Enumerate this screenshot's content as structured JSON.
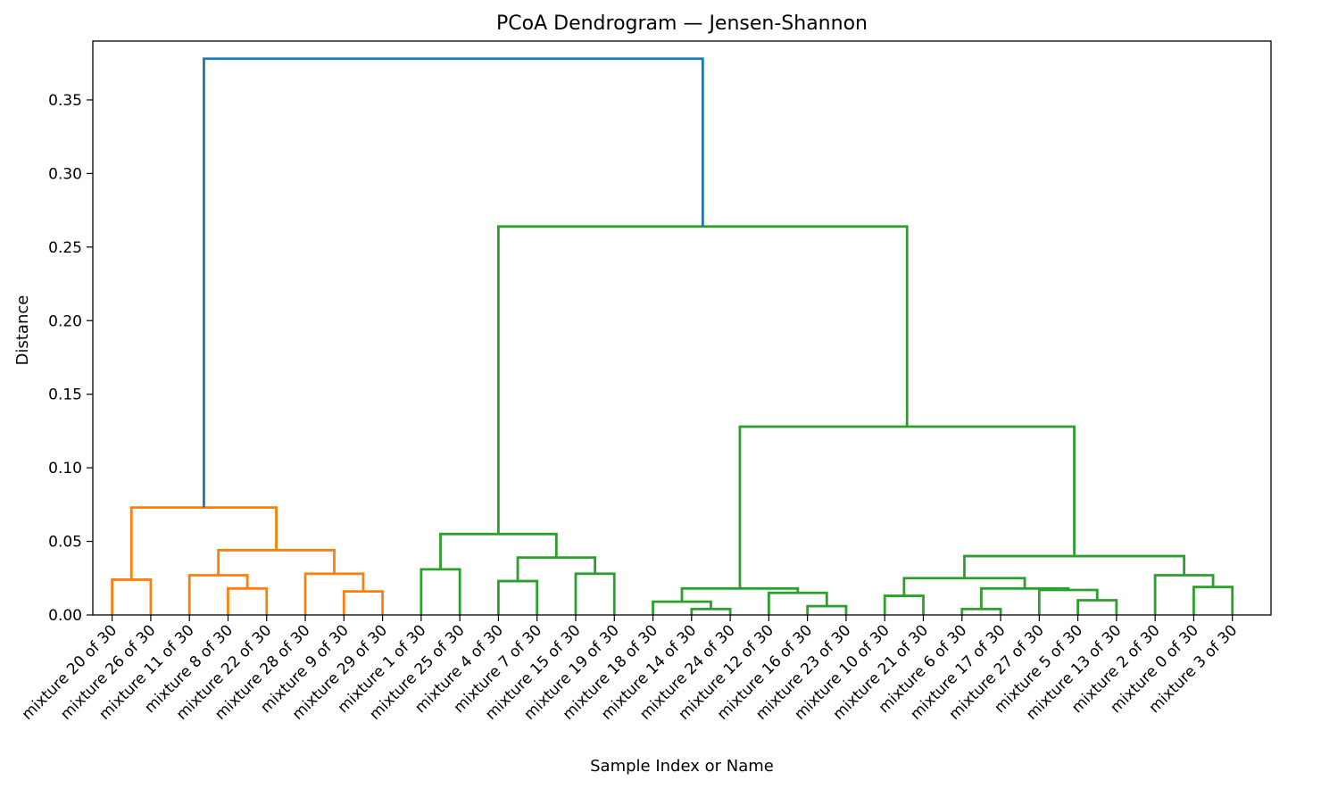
{
  "chart_data": {
    "type": "dendrogram",
    "title": "PCoA Dendrogram — Jensen-Shannon",
    "xlabel": "Sample Index or Name",
    "ylabel": "Distance",
    "ylim": [
      0,
      0.39
    ],
    "yticks": [
      0.0,
      0.05,
      0.1,
      0.15,
      0.2,
      0.25,
      0.3,
      0.35
    ],
    "ytick_labels": [
      "0.00",
      "0.05",
      "0.10",
      "0.15",
      "0.20",
      "0.25",
      "0.30",
      "0.35"
    ],
    "grid": false,
    "leaves": [
      "mixture 20 of 30",
      "mixture 26 of 30",
      "mixture 11 of 30",
      "mixture 8 of 30",
      "mixture 22 of 30",
      "mixture 28 of 30",
      "mixture 9 of 30",
      "mixture 29 of 30",
      "mixture 1 of 30",
      "mixture 25 of 30",
      "mixture 4 of 30",
      "mixture 7 of 30",
      "mixture 15 of 30",
      "mixture 19 of 30",
      "mixture 18 of 30",
      "mixture 14 of 30",
      "mixture 24 of 30",
      "mixture 12 of 30",
      "mixture 16 of 30",
      "mixture 23 of 30",
      "mixture 10 of 30",
      "mixture 21 of 30",
      "mixture 6 of 30",
      "mixture 17 of 30",
      "mixture 27 of 30",
      "mixture 5 of 30",
      "mixture 13 of 30",
      "mixture 2 of 30",
      "mixture 0 of 30",
      "mixture 3 of 30"
    ],
    "colors": {
      "orange": "#ff7f0e",
      "green": "#2ca02c",
      "blue": "#1f77b4"
    },
    "merges": [
      {
        "left": 0,
        "right": 1,
        "height": 0.024,
        "color": "orange"
      },
      {
        "left": 3,
        "right": 4,
        "height": 0.018,
        "color": "orange"
      },
      {
        "left": 2,
        "right": "c1",
        "height": 0.027,
        "color": "orange"
      },
      {
        "left": 6,
        "right": 7,
        "height": 0.016,
        "color": "orange"
      },
      {
        "left": 5,
        "right": "c3",
        "height": 0.028,
        "color": "orange"
      },
      {
        "left": "c2",
        "right": "c4",
        "height": 0.044,
        "color": "orange"
      },
      {
        "left": "c0",
        "right": "c5",
        "height": 0.073,
        "color": "orange"
      },
      {
        "left": 8,
        "right": 9,
        "height": 0.031,
        "color": "green"
      },
      {
        "left": 10,
        "right": 11,
        "height": 0.023,
        "color": "green"
      },
      {
        "left": 12,
        "right": 13,
        "height": 0.028,
        "color": "green"
      },
      {
        "left": "c8",
        "right": "c9",
        "height": 0.039,
        "color": "green"
      },
      {
        "left": "c7",
        "right": "c10",
        "height": 0.055,
        "color": "green"
      },
      {
        "left": 15,
        "right": 16,
        "height": 0.004,
        "color": "green"
      },
      {
        "left": 14,
        "right": "c12",
        "height": 0.009,
        "color": "green"
      },
      {
        "left": 18,
        "right": 19,
        "height": 0.006,
        "color": "green"
      },
      {
        "left": 17,
        "right": "c14",
        "height": 0.015,
        "color": "green"
      },
      {
        "left": "c13",
        "right": "c15",
        "height": 0.018,
        "color": "green"
      },
      {
        "left": 20,
        "right": 21,
        "height": 0.013,
        "color": "green"
      },
      {
        "left": 22,
        "right": 23,
        "height": 0.004,
        "color": "green"
      },
      {
        "left": 25,
        "right": 26,
        "height": 0.01,
        "color": "green"
      },
      {
        "left": 24,
        "right": "c19",
        "height": 0.017,
        "color": "green"
      },
      {
        "left": "c18",
        "right": "c20",
        "height": 0.018,
        "color": "green"
      },
      {
        "left": "c17",
        "right": "c21",
        "height": 0.025,
        "color": "green"
      },
      {
        "left": 28,
        "right": 29,
        "height": 0.019,
        "color": "green"
      },
      {
        "left": 27,
        "right": "c23",
        "height": 0.027,
        "color": "green"
      },
      {
        "left": "c22",
        "right": "c24",
        "height": 0.04,
        "color": "green"
      },
      {
        "left": "c16",
        "right": "c25",
        "height": 0.128,
        "color": "green"
      },
      {
        "left": "c11",
        "right": "c26",
        "height": 0.264,
        "color": "green"
      },
      {
        "left": "c6",
        "right": "c27",
        "height": 0.378,
        "color": "blue"
      }
    ]
  }
}
